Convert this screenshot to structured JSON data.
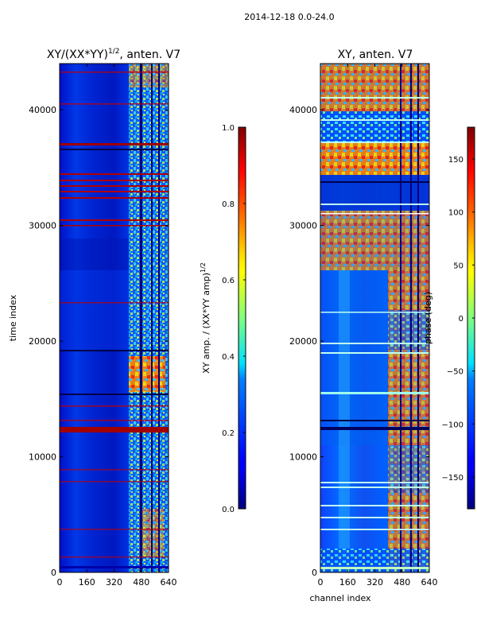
{
  "chart_data": [
    {
      "type": "heatmap",
      "suptitle": "2014-12-18 0.0-24.0",
      "title": "XY/(XX*YY)",
      "title_exp": "1/2",
      "title_suffix": ", anten. V7",
      "xlabel": "",
      "ylabel": "time index",
      "xlim": [
        0,
        640
      ],
      "ylim": [
        0,
        44000
      ],
      "xticks": [
        0,
        160,
        320,
        480,
        640
      ],
      "yticks": [
        0,
        10000,
        20000,
        30000,
        40000
      ],
      "xtick_labels": [
        "0",
        "160",
        "320",
        "480",
        "640"
      ],
      "ytick_labels": [
        "0",
        "10000",
        "20000",
        "30000",
        "40000"
      ],
      "colorbar": {
        "label": "XY amp. / (XX*YY amp)",
        "label_exp": "1/2",
        "range": [
          0.0,
          1.0
        ],
        "ticks": [
          0.0,
          0.2,
          0.4,
          0.6,
          0.8,
          1.0
        ],
        "tick_labels": [
          "0.0",
          "0.2",
          "0.4",
          "0.6",
          "0.8",
          "1.0"
        ]
      },
      "colormap": "jet"
    },
    {
      "type": "heatmap",
      "title": "XY, anten. V7",
      "xlabel": "channel index",
      "ylabel": "",
      "xlim": [
        0,
        640
      ],
      "ylim": [
        0,
        44000
      ],
      "xticks": [
        0,
        160,
        320,
        480,
        640
      ],
      "yticks": [
        0,
        10000,
        20000,
        30000,
        40000
      ],
      "xtick_labels": [
        "0",
        "160",
        "320",
        "480",
        "640"
      ],
      "ytick_labels": [
        "0",
        "10000",
        "20000",
        "30000",
        "40000"
      ],
      "colorbar": {
        "label": "phase (deg)",
        "range": [
          -180,
          180
        ],
        "ticks": [
          -150,
          -100,
          -50,
          0,
          50,
          100,
          150
        ],
        "tick_labels": [
          "−150",
          "−100",
          "−50",
          "0",
          "50",
          "100",
          "150"
        ]
      },
      "colormap": "jet"
    }
  ]
}
